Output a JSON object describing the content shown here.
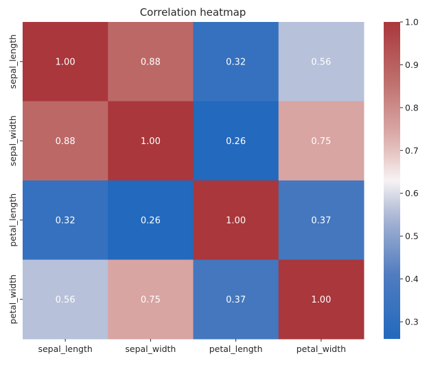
{
  "chart_data": {
    "type": "heatmap",
    "title": "Correlation heatmap",
    "x_categories": [
      "sepal_length",
      "sepal_width",
      "petal_length",
      "petal_width"
    ],
    "y_categories": [
      "sepal_length",
      "sepal_width",
      "petal_length",
      "petal_width"
    ],
    "values": [
      [
        1.0,
        0.88,
        0.32,
        0.56
      ],
      [
        0.88,
        1.0,
        0.26,
        0.75
      ],
      [
        0.32,
        0.26,
        1.0,
        0.37
      ],
      [
        0.56,
        0.75,
        0.37,
        1.0
      ]
    ],
    "annotation_format": "0.00",
    "colormap": "vlag",
    "colorbar": {
      "range": [
        0.26,
        1.0
      ],
      "ticks": [
        0.3,
        0.4,
        0.5,
        0.6,
        0.7,
        0.8,
        0.9,
        1.0
      ],
      "tick_labels": [
        "0.3",
        "0.4",
        "0.5",
        "0.6",
        "0.7",
        "0.8",
        "0.9",
        "1.0"
      ]
    },
    "colors": {
      "low": "#2369bd",
      "mid": "#f7f3f3",
      "high": "#a9373b",
      "annotation_text": "#ffffff",
      "axis_text": "#262626"
    }
  }
}
